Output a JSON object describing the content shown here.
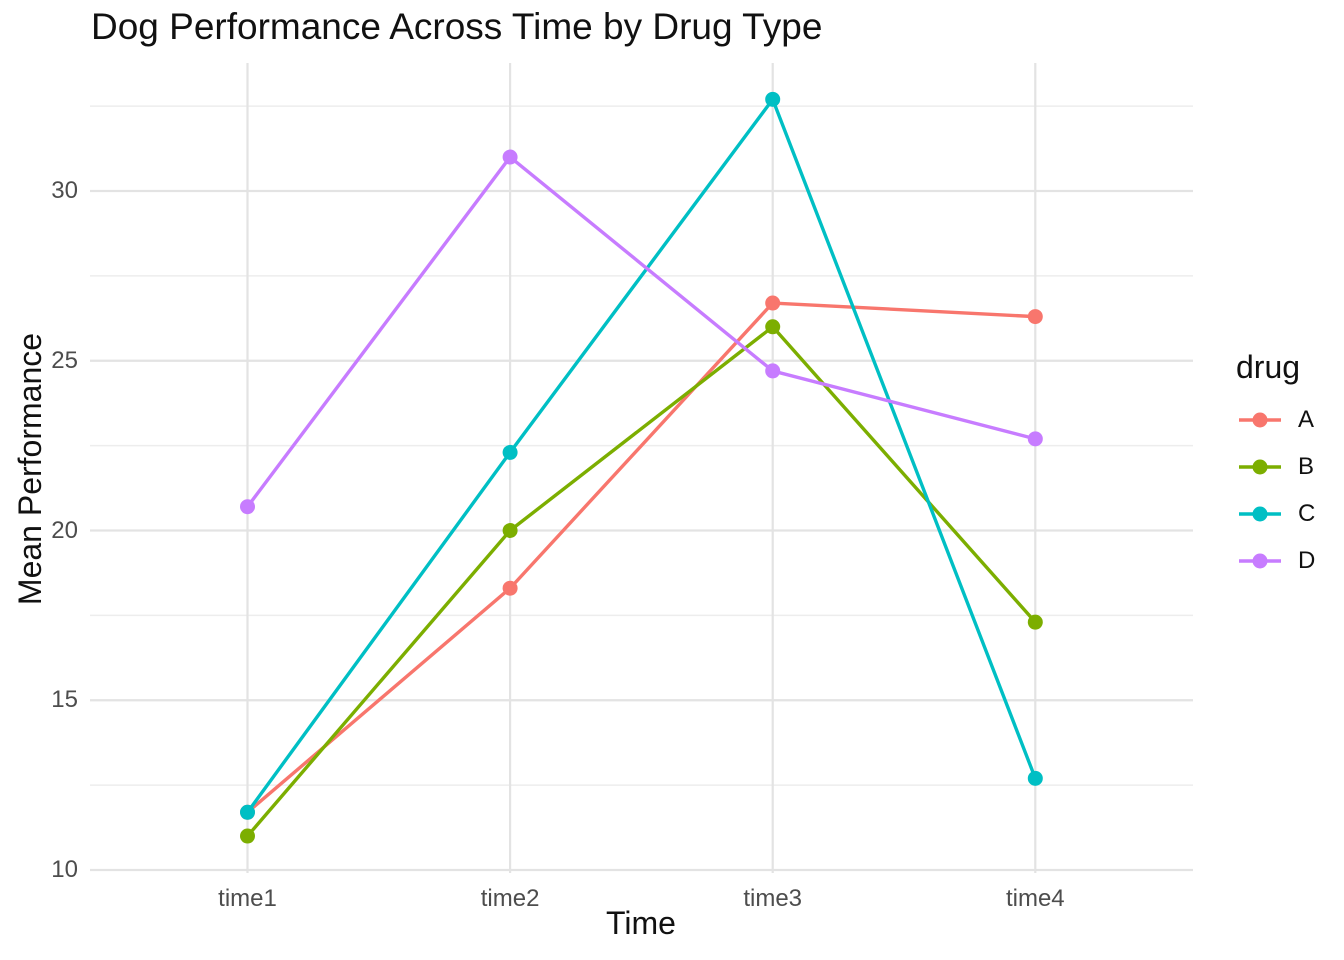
{
  "chart_data": {
    "type": "line",
    "title": "Dog Performance Across Time by Drug Type",
    "xlabel": "Time",
    "ylabel": "Mean Performance",
    "categories": [
      "time1",
      "time2",
      "time3",
      "time4"
    ],
    "series": [
      {
        "name": "A",
        "color": "#F8766D",
        "values": [
          11.7,
          18.3,
          26.7,
          26.3
        ]
      },
      {
        "name": "B",
        "color": "#7CAE00",
        "values": [
          11.0,
          20.0,
          26.0,
          17.3
        ]
      },
      {
        "name": "C",
        "color": "#00BFC4",
        "values": [
          11.7,
          22.3,
          32.7,
          12.7
        ]
      },
      {
        "name": "D",
        "color": "#C77CFF",
        "values": [
          20.7,
          31.0,
          24.7,
          22.7
        ]
      }
    ],
    "y_ticks": [
      10,
      15,
      20,
      25,
      30
    ],
    "y_minor_ticks": [
      12.5,
      17.5,
      22.5,
      27.5,
      32.5
    ],
    "ylim": [
      9.9,
      33.85
    ],
    "grid": true,
    "legend": {
      "title": "drug",
      "position": "right"
    }
  },
  "styles": {
    "grid_major_color": "#E3E3E3",
    "grid_minor_color": "#EDEDED",
    "tick_text_color": "#4d4d4d",
    "text_color": "#111111",
    "background": "#FFFFFF"
  }
}
